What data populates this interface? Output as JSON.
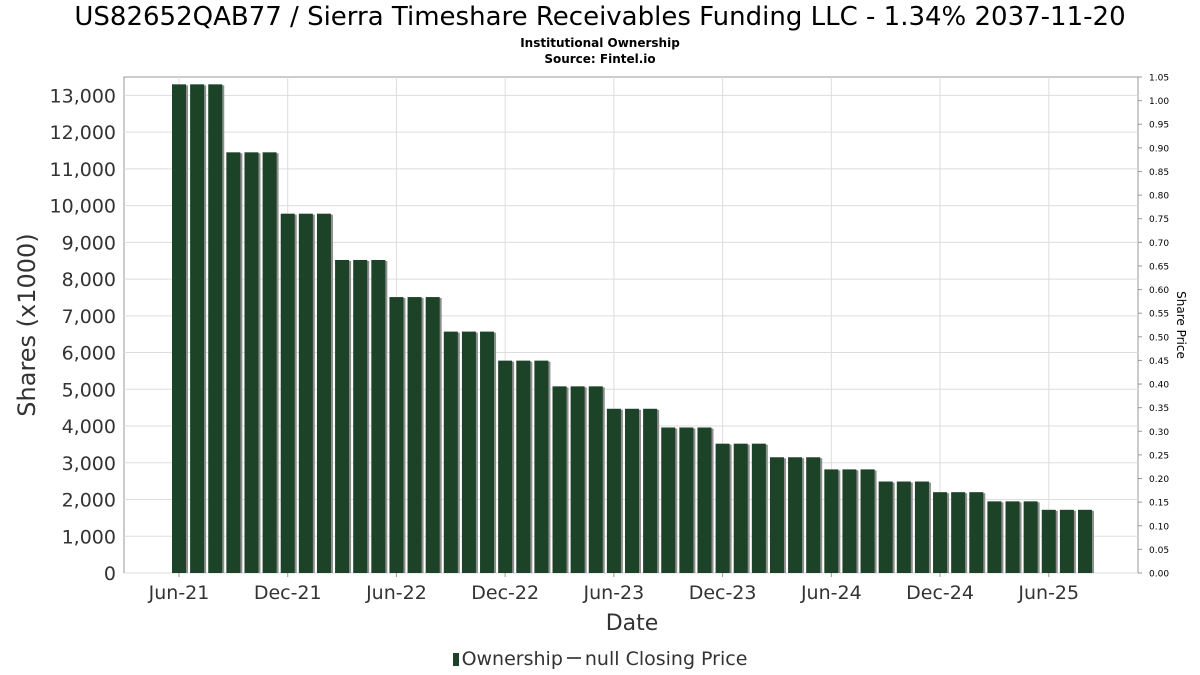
{
  "header": {
    "title": "US82652QAB77 / Sierra Timeshare Receivables Funding LLC - 1.34% 2037-11-20",
    "subtitle": "Institutional Ownership",
    "source": "Source: Fintel.io"
  },
  "legend": {
    "ownership_label": "Ownership",
    "price_label": "null Closing Price"
  },
  "colors": {
    "bar": "#1c4227",
    "bar_shadow": "#8e8e8e",
    "grid": "#dddddd",
    "axis_text": "#333333"
  },
  "chart_data": {
    "type": "bar",
    "xlabel": "Date",
    "ylabel": "Shares (x1000)",
    "y2label": "Share Price",
    "ylim": [
      0,
      13500
    ],
    "y2lim": [
      0,
      1.05
    ],
    "grid": true,
    "legend_position": "bottom",
    "yticks": [
      0,
      1000,
      2000,
      3000,
      4000,
      5000,
      6000,
      7000,
      8000,
      9000,
      10000,
      11000,
      12000,
      13000
    ],
    "ytick_labels": [
      "0",
      "1,000",
      "2,000",
      "3,000",
      "4,000",
      "5,000",
      "6,000",
      "7,000",
      "8,000",
      "9,000",
      "10,000",
      "11,000",
      "12,000",
      "13,000"
    ],
    "y2ticks": [
      "0.00",
      "0.05",
      "0.10",
      "0.15",
      "0.20",
      "0.25",
      "0.30",
      "0.35",
      "0.40",
      "0.45",
      "0.50",
      "0.55",
      "0.60",
      "0.65",
      "0.70",
      "0.75",
      "0.80",
      "0.85",
      "0.90",
      "0.95",
      "1.00",
      "1.05"
    ],
    "xtick_labels": [
      "Jun-21",
      "Dec-21",
      "Jun-22",
      "Dec-22",
      "Jun-23",
      "Dec-23",
      "Jun-24",
      "Dec-24",
      "Jun-25"
    ],
    "series": [
      {
        "name": "Ownership",
        "values": [
          13300,
          13300,
          13300,
          11450,
          11450,
          11450,
          9780,
          9780,
          9780,
          8520,
          8520,
          8520,
          7510,
          7510,
          7510,
          6570,
          6570,
          6570,
          5780,
          5780,
          5780,
          5080,
          5080,
          5080,
          4470,
          4470,
          4470,
          3960,
          3960,
          3960,
          3520,
          3520,
          3520,
          3150,
          3150,
          3150,
          2820,
          2820,
          2820,
          2490,
          2490,
          2490,
          2200,
          2200,
          2200,
          1950,
          1950,
          1950,
          1720,
          1720,
          1720
        ]
      }
    ]
  }
}
